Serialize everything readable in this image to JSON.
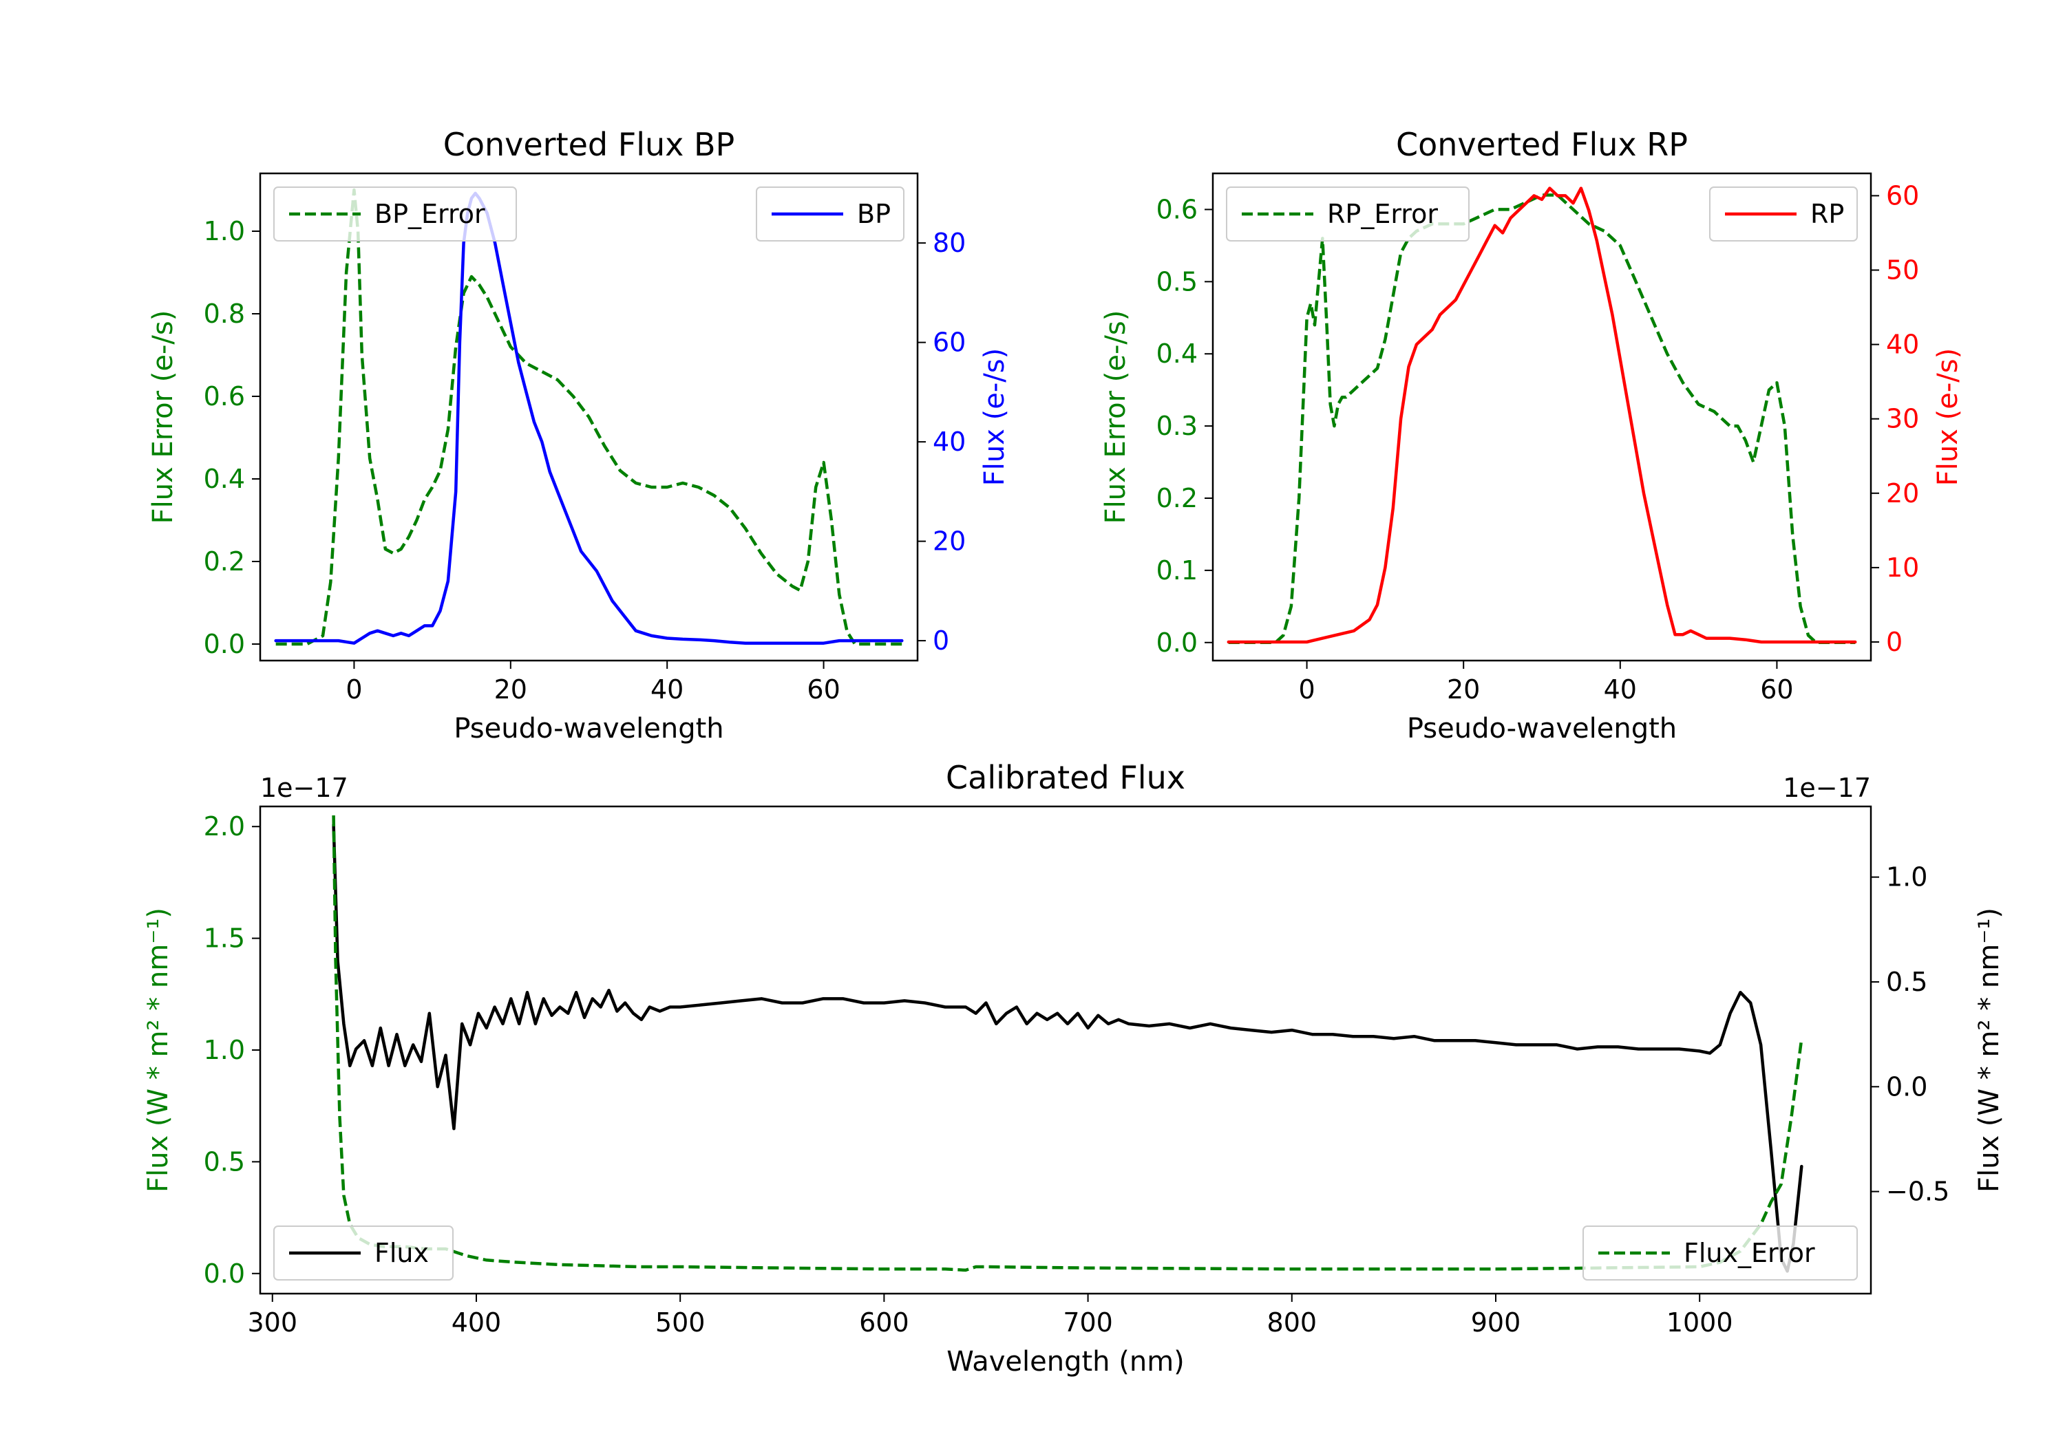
{
  "chart_data": [
    {
      "id": "bp",
      "type": "line",
      "title": "Converted Flux BP",
      "xlabel": "Pseudo-wavelength",
      "xlim": [
        -12,
        72
      ],
      "xticks": [
        0,
        20,
        40,
        60
      ],
      "left_axis": {
        "label": "Flux Error (e-/s)",
        "color": "#008000",
        "ylim": [
          -0.04,
          1.14
        ],
        "ticks": [
          "0.0",
          "0.2",
          "0.4",
          "0.6",
          "0.8",
          "1.0"
        ]
      },
      "right_axis": {
        "label": "Flux (e-/s)",
        "color": "#0000ff",
        "ylim": [
          -4,
          94
        ],
        "ticks": [
          "0",
          "20",
          "40",
          "60",
          "80"
        ]
      },
      "series": [
        {
          "name": "BP_Error",
          "axis": "left",
          "color": "#008000",
          "dash": true,
          "legend": "upper left",
          "x": [
            -10,
            -8,
            -6,
            -4,
            -3,
            -2,
            -1,
            0,
            0.5,
            1,
            2,
            3,
            4,
            5,
            6,
            7,
            8,
            9,
            10,
            11,
            12,
            13,
            14,
            15,
            16,
            17,
            18,
            19,
            20,
            21,
            22,
            24,
            26,
            28,
            30,
            32,
            34,
            36,
            38,
            40,
            42,
            44,
            46,
            48,
            50,
            52,
            54,
            56,
            57,
            58,
            59,
            60,
            61,
            62,
            63,
            64,
            66,
            68,
            70
          ],
          "y": [
            0,
            0,
            0,
            0.02,
            0.15,
            0.45,
            0.9,
            1.1,
            1.0,
            0.7,
            0.45,
            0.35,
            0.23,
            0.22,
            0.23,
            0.26,
            0.3,
            0.35,
            0.38,
            0.42,
            0.52,
            0.72,
            0.85,
            0.89,
            0.87,
            0.84,
            0.8,
            0.76,
            0.72,
            0.7,
            0.68,
            0.66,
            0.64,
            0.6,
            0.55,
            0.48,
            0.42,
            0.39,
            0.38,
            0.38,
            0.39,
            0.38,
            0.36,
            0.33,
            0.28,
            0.22,
            0.17,
            0.14,
            0.13,
            0.2,
            0.38,
            0.44,
            0.3,
            0.12,
            0.03,
            0,
            0,
            0,
            0
          ]
        },
        {
          "name": "BP",
          "axis": "right",
          "color": "#0000ff",
          "dash": false,
          "legend": "upper right",
          "x": [
            -10,
            -8,
            -6,
            -4,
            -2,
            0,
            1,
            2,
            3,
            4,
            5,
            6,
            7,
            8,
            9,
            10,
            11,
            12,
            13,
            13.5,
            14,
            14.5,
            15,
            15.5,
            16,
            17,
            18,
            19,
            20,
            21,
            22,
            23,
            24,
            25,
            26,
            27,
            28,
            29,
            30,
            31,
            32,
            33,
            34,
            35,
            36,
            37,
            38,
            40,
            42,
            44,
            46,
            48,
            50,
            52,
            54,
            56,
            58,
            60,
            62,
            64,
            66,
            68,
            70
          ],
          "y": [
            0,
            0,
            0,
            0,
            0,
            -0.5,
            0.5,
            1.5,
            2,
            1.5,
            1,
            1.5,
            1,
            2,
            3,
            3,
            6,
            12,
            30,
            60,
            80,
            86,
            89,
            90,
            89,
            86,
            80,
            72,
            64,
            56,
            50,
            44,
            40,
            34,
            30,
            26,
            22,
            18,
            16,
            14,
            11,
            8,
            6,
            4,
            2,
            1.5,
            1,
            0.5,
            0.3,
            0.2,
            0,
            -0.3,
            -0.5,
            -0.5,
            -0.5,
            -0.5,
            -0.5,
            -0.5,
            0,
            0,
            0,
            0,
            0
          ]
        }
      ]
    },
    {
      "id": "rp",
      "type": "line",
      "title": "Converted Flux RP",
      "xlabel": "Pseudo-wavelength",
      "xlim": [
        -12,
        72
      ],
      "xticks": [
        0,
        20,
        40,
        60
      ],
      "left_axis": {
        "label": "Flux Error (e-/s)",
        "color": "#008000",
        "ylim": [
          -0.025,
          0.65
        ],
        "ticks": [
          "0.0",
          "0.1",
          "0.2",
          "0.3",
          "0.4",
          "0.5",
          "0.6"
        ]
      },
      "right_axis": {
        "label": "Flux (e-/s)",
        "color": "#ff0000",
        "ylim": [
          -2.5,
          63
        ],
        "ticks": [
          "0",
          "10",
          "20",
          "30",
          "40",
          "50",
          "60"
        ]
      },
      "series": [
        {
          "name": "RP_Error",
          "axis": "left",
          "color": "#008000",
          "dash": true,
          "legend": "upper left",
          "x": [
            -10,
            -6,
            -4,
            -3,
            -2,
            -1,
            0,
            0.5,
            1,
            1.5,
            2,
            2.5,
            3,
            3.5,
            4,
            4.5,
            5,
            6,
            7,
            8,
            9,
            10,
            11,
            12,
            13,
            14,
            16,
            18,
            20,
            22,
            24,
            26,
            28,
            30,
            32,
            34,
            36,
            38,
            40,
            42,
            44,
            46,
            48,
            50,
            52,
            54,
            55,
            56,
            57,
            58,
            59,
            60,
            61,
            62,
            63,
            64,
            65,
            66,
            68,
            70
          ],
          "y": [
            0,
            0,
            0,
            0.01,
            0.05,
            0.2,
            0.45,
            0.47,
            0.44,
            0.5,
            0.56,
            0.45,
            0.33,
            0.3,
            0.33,
            0.34,
            0.34,
            0.35,
            0.36,
            0.37,
            0.38,
            0.42,
            0.48,
            0.54,
            0.56,
            0.57,
            0.58,
            0.58,
            0.58,
            0.59,
            0.6,
            0.6,
            0.61,
            0.62,
            0.62,
            0.6,
            0.58,
            0.57,
            0.55,
            0.5,
            0.45,
            0.4,
            0.36,
            0.33,
            0.32,
            0.3,
            0.3,
            0.28,
            0.25,
            0.3,
            0.35,
            0.36,
            0.3,
            0.15,
            0.05,
            0.01,
            0,
            0,
            0,
            0
          ]
        },
        {
          "name": "RP",
          "axis": "right",
          "color": "#ff0000",
          "dash": false,
          "legend": "upper right",
          "x": [
            -10,
            -6,
            -2,
            0,
            2,
            4,
            6,
            8,
            9,
            10,
            11,
            12,
            13,
            14,
            15,
            16,
            17,
            18,
            19,
            20,
            21,
            22,
            23,
            24,
            25,
            26,
            27,
            28,
            29,
            30,
            31,
            32,
            33,
            34,
            35,
            36,
            37,
            38,
            39,
            40,
            41,
            42,
            43,
            44,
            45,
            46,
            47,
            48,
            49,
            50,
            51,
            52,
            54,
            56,
            58,
            60,
            62,
            64,
            66,
            68,
            70
          ],
          "y": [
            0,
            0,
            0,
            0,
            0.5,
            1,
            1.5,
            3,
            5,
            10,
            18,
            30,
            37,
            40,
            41,
            42,
            44,
            45,
            46,
            48,
            50,
            52,
            54,
            56,
            55,
            57,
            58,
            59,
            60,
            59.5,
            61,
            60,
            60,
            59,
            61,
            58,
            54,
            49,
            44,
            38,
            32,
            26,
            20,
            15,
            10,
            5,
            1,
            1,
            1.5,
            1,
            0.5,
            0.5,
            0.5,
            0.3,
            0,
            0,
            0,
            0,
            0,
            0,
            0
          ]
        }
      ]
    },
    {
      "id": "cal",
      "type": "line",
      "title": "Calibrated Flux",
      "xlabel": "Wavelength (nm)",
      "xlim": [
        294,
        1084
      ],
      "xticks": [
        300,
        400,
        500,
        600,
        700,
        800,
        900,
        1000
      ],
      "left_axis": {
        "label": "Flux (W * m² * nm⁻¹)",
        "color": "#008000",
        "ylim": [
          -0.09,
          2.09
        ],
        "ticks": [
          "0.0",
          "0.5",
          "1.0",
          "1.5",
          "2.0"
        ],
        "offset_text": "1e−17"
      },
      "right_axis": {
        "label": "Flux (W * m² * nm⁻¹)",
        "color": "#000000",
        "ylim": [
          -0.987,
          1.337
        ],
        "ticks": [
          "−0.5",
          "0.0",
          "0.5",
          "1.0"
        ],
        "offset_text": "1e−17"
      },
      "series": [
        {
          "name": "Flux",
          "axis": "right",
          "color": "#000000",
          "dash": false,
          "legend": "lower left",
          "x": [
            330,
            332,
            335,
            338,
            341,
            345,
            349,
            353,
            357,
            361,
            365,
            369,
            373,
            377,
            381,
            385,
            389,
            393,
            397,
            401,
            405,
            409,
            413,
            417,
            421,
            425,
            429,
            433,
            437,
            441,
            445,
            449,
            453,
            457,
            461,
            465,
            469,
            473,
            477,
            481,
            485,
            490,
            495,
            500,
            510,
            520,
            530,
            540,
            550,
            560,
            570,
            580,
            590,
            600,
            610,
            620,
            630,
            640,
            645,
            650,
            655,
            660,
            665,
            670,
            675,
            680,
            685,
            690,
            695,
            700,
            705,
            710,
            715,
            720,
            730,
            740,
            750,
            760,
            770,
            780,
            790,
            800,
            810,
            820,
            830,
            840,
            850,
            860,
            870,
            880,
            890,
            900,
            910,
            920,
            930,
            940,
            950,
            960,
            970,
            980,
            990,
            1000,
            1005,
            1010,
            1015,
            1020,
            1025,
            1030,
            1035,
            1040,
            1043,
            1046,
            1050
          ],
          "y": [
            1.25,
            0.6,
            0.3,
            0.1,
            0.18,
            0.22,
            0.1,
            0.28,
            0.1,
            0.25,
            0.1,
            0.2,
            0.12,
            0.35,
            0.0,
            0.15,
            -0.2,
            0.3,
            0.2,
            0.35,
            0.28,
            0.38,
            0.3,
            0.42,
            0.3,
            0.45,
            0.3,
            0.42,
            0.34,
            0.38,
            0.35,
            0.45,
            0.33,
            0.42,
            0.38,
            0.46,
            0.36,
            0.4,
            0.35,
            0.32,
            0.38,
            0.36,
            0.38,
            0.38,
            0.39,
            0.4,
            0.41,
            0.42,
            0.4,
            0.4,
            0.42,
            0.42,
            0.4,
            0.4,
            0.41,
            0.4,
            0.38,
            0.38,
            0.35,
            0.4,
            0.3,
            0.35,
            0.38,
            0.3,
            0.35,
            0.32,
            0.35,
            0.3,
            0.35,
            0.28,
            0.34,
            0.3,
            0.32,
            0.3,
            0.29,
            0.3,
            0.28,
            0.3,
            0.28,
            0.27,
            0.26,
            0.27,
            0.25,
            0.25,
            0.24,
            0.24,
            0.23,
            0.24,
            0.22,
            0.22,
            0.22,
            0.21,
            0.2,
            0.2,
            0.2,
            0.18,
            0.19,
            0.19,
            0.18,
            0.18,
            0.18,
            0.17,
            0.16,
            0.2,
            0.35,
            0.45,
            0.4,
            0.2,
            -0.3,
            -0.82,
            -0.88,
            -0.75,
            -0.38
          ]
        },
        {
          "name": "Flux_Error",
          "axis": "left",
          "color": "#008000",
          "dash": true,
          "legend": "lower right",
          "x": [
            330,
            331,
            333,
            335,
            338,
            342,
            348,
            355,
            365,
            375,
            385,
            395,
            405,
            420,
            440,
            460,
            480,
            500,
            550,
            600,
            630,
            640,
            645,
            650,
            700,
            800,
            900,
            950,
            1000,
            1010,
            1020,
            1030,
            1035,
            1040,
            1045,
            1050
          ],
          "y": [
            2.05,
            1.4,
            0.7,
            0.35,
            0.22,
            0.16,
            0.13,
            0.12,
            0.12,
            0.11,
            0.11,
            0.08,
            0.06,
            0.05,
            0.04,
            0.035,
            0.03,
            0.03,
            0.025,
            0.02,
            0.02,
            0.015,
            0.03,
            0.03,
            0.025,
            0.02,
            0.02,
            0.025,
            0.03,
            0.05,
            0.1,
            0.22,
            0.32,
            0.4,
            0.7,
            1.05
          ]
        }
      ]
    }
  ]
}
